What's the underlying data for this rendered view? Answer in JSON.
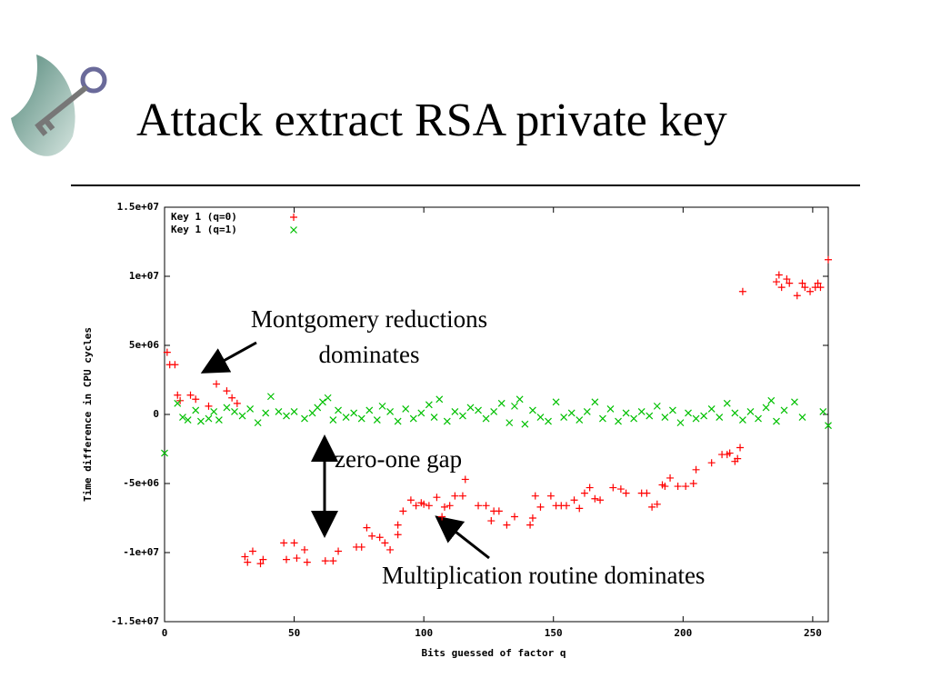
{
  "title": "Attack extract RSA private key",
  "chart_data": {
    "type": "scatter",
    "xlabel": "Bits guessed of factor q",
    "ylabel": "Time difference in CPU cycles",
    "xlim": [
      0,
      256
    ],
    "ylim": [
      -15000000,
      15000000
    ],
    "xticks": [
      0,
      50,
      100,
      150,
      200,
      250
    ],
    "yticks": [
      {
        "value": -15000000,
        "label": "-1.5e+07"
      },
      {
        "value": -10000000,
        "label": "-1e+07"
      },
      {
        "value": -5000000,
        "label": "-5e+06"
      },
      0,
      {
        "value": 5000000,
        "label": "5e+06"
      },
      {
        "value": 10000000,
        "label": "1e+07"
      },
      {
        "value": 15000000,
        "label": "1.5e+07"
      }
    ],
    "legend": "upper left",
    "series": [
      {
        "name": "Key 1 (q=0)",
        "color": "#ff0000",
        "marker": "plus",
        "x": [
          1,
          2,
          4,
          5,
          6,
          10,
          12,
          17,
          20,
          24,
          26,
          28,
          31,
          32,
          34,
          37,
          38,
          46,
          47,
          50,
          51,
          54,
          55,
          62,
          65,
          67,
          74,
          76,
          78,
          80,
          83,
          85,
          87,
          90,
          90,
          92,
          95,
          97,
          99,
          100,
          102,
          105,
          107,
          108,
          110,
          112,
          115,
          116,
          121,
          124,
          126,
          127,
          129,
          132,
          135,
          141,
          142,
          143,
          145,
          149,
          151,
          153,
          155,
          158,
          160,
          162,
          164,
          166,
          168,
          173,
          176,
          178,
          184,
          186,
          188,
          190,
          192,
          193,
          195,
          198,
          201,
          204,
          205,
          211,
          215,
          217,
          218,
          220,
          221,
          222,
          223,
          236,
          237,
          238,
          240,
          241,
          244,
          246,
          247,
          249,
          251,
          252,
          253,
          256
        ],
        "values": [
          4500000,
          3600000,
          3600000,
          1400000,
          1000000,
          1400000,
          1100000,
          600000,
          2200000,
          1700000,
          1200000,
          800000,
          -10300000,
          -10700000,
          -9900000,
          -10800000,
          -10500000,
          -9300000,
          -10500000,
          -9300000,
          -10400000,
          -9800000,
          -10700000,
          -10600000,
          -10600000,
          -9900000,
          -9600000,
          -9600000,
          -8200000,
          -8800000,
          -8900000,
          -9300000,
          -9800000,
          -8000000,
          -8700000,
          -7000000,
          -6200000,
          -6600000,
          -6400000,
          -6500000,
          -6600000,
          -6000000,
          -7400000,
          -6700000,
          -6600000,
          -5900000,
          -5900000,
          -4700000,
          -6600000,
          -6600000,
          -7700000,
          -7000000,
          -7000000,
          -8000000,
          -7400000,
          -8000000,
          -7500000,
          -5900000,
          -6700000,
          -5900000,
          -6600000,
          -6600000,
          -6600000,
          -6200000,
          -6800000,
          -5700000,
          -5300000,
          -6100000,
          -6200000,
          -5300000,
          -5400000,
          -5700000,
          -5700000,
          -5700000,
          -6700000,
          -6500000,
          -5100000,
          -5200000,
          -4600000,
          -5200000,
          -5200000,
          -5000000,
          -4000000,
          -3500000,
          -2900000,
          -2900000,
          -2800000,
          -3400000,
          -3200000,
          -2400000,
          8900000,
          9600000,
          10100000,
          9200000,
          9800000,
          9500000,
          8600000,
          9500000,
          9200000,
          8900000,
          9200000,
          9500000,
          9200000,
          11200000
        ]
      },
      {
        "name": "Key 1 (q=1)",
        "color": "#00c000",
        "marker": "cross",
        "x": [
          0,
          5,
          7,
          9,
          12,
          14,
          17,
          19,
          21,
          24,
          27,
          30,
          33,
          36,
          39,
          41,
          44,
          47,
          50,
          54,
          57,
          59,
          61,
          63,
          65,
          67,
          70,
          73,
          76,
          79,
          82,
          84,
          87,
          90,
          93,
          96,
          99,
          102,
          104,
          106,
          109,
          112,
          115,
          118,
          121,
          124,
          127,
          130,
          133,
          135,
          137,
          139,
          142,
          145,
          148,
          151,
          154,
          157,
          160,
          163,
          166,
          169,
          172,
          175,
          178,
          181,
          184,
          187,
          190,
          193,
          196,
          199,
          202,
          205,
          208,
          211,
          214,
          217,
          220,
          223,
          226,
          229,
          232,
          234,
          236,
          239,
          243,
          246,
          254,
          256
        ],
        "values": [
          -2800000,
          800000,
          -200000,
          -400000,
          300000,
          -500000,
          -300000,
          200000,
          -400000,
          500000,
          200000,
          -100000,
          400000,
          -600000,
          100000,
          1300000,
          200000,
          -100000,
          200000,
          -300000,
          100000,
          500000,
          900000,
          1200000,
          -400000,
          300000,
          -200000,
          100000,
          -300000,
          300000,
          -400000,
          600000,
          200000,
          -500000,
          400000,
          -300000,
          100000,
          700000,
          -200000,
          1100000,
          -500000,
          200000,
          -100000,
          500000,
          300000,
          -300000,
          200000,
          800000,
          -600000,
          600000,
          1100000,
          -700000,
          300000,
          -200000,
          -500000,
          900000,
          -200000,
          100000,
          -400000,
          200000,
          900000,
          -300000,
          400000,
          -500000,
          100000,
          -300000,
          200000,
          -100000,
          600000,
          -200000,
          300000,
          -600000,
          100000,
          -300000,
          -100000,
          400000,
          -200000,
          800000,
          100000,
          -400000,
          200000,
          -300000,
          500000,
          1000000,
          -500000,
          300000,
          900000,
          -200000,
          200000,
          -800000
        ]
      }
    ],
    "annotations": [
      {
        "lines": [
          "Montgomery reductions",
          "dominates"
        ]
      },
      {
        "text": "zero-one gap"
      },
      {
        "text": "Multiplication routine dominates"
      }
    ]
  }
}
